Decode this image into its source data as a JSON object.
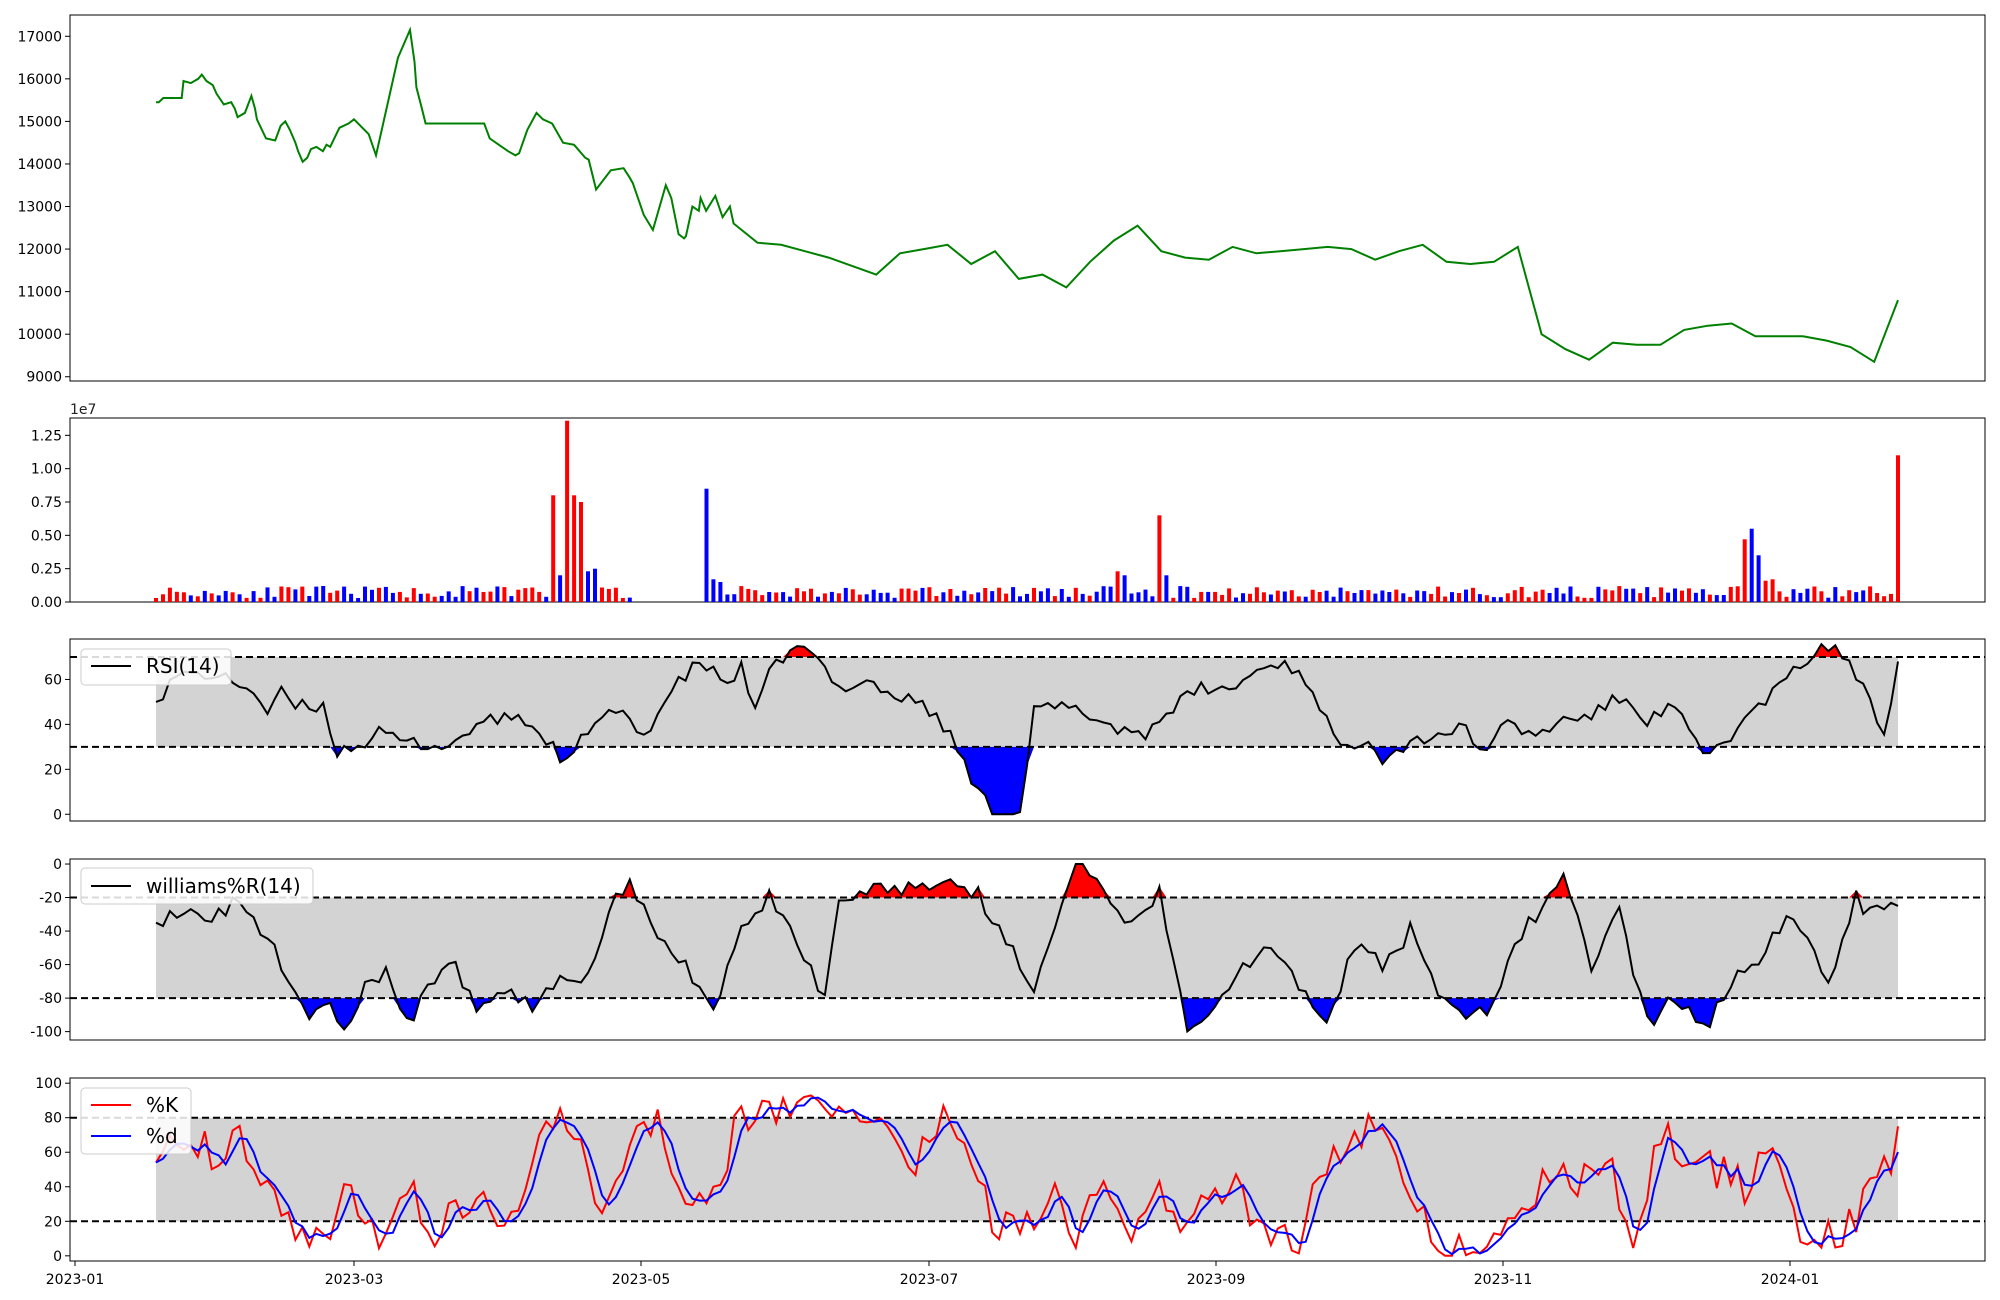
{
  "chart_data": [
    {
      "type": "line",
      "title": "",
      "xlabel": "",
      "ylabel": "",
      "ylim": [
        8900,
        17500
      ],
      "yticks": [
        9000,
        10000,
        11000,
        12000,
        13000,
        14000,
        15000,
        16000,
        17000
      ],
      "color": "#008000",
      "x": [
        0,
        3,
        8,
        16,
        28,
        30,
        38,
        46,
        50,
        55,
        62,
        66,
        74,
        82,
        86,
        89,
        97,
        104,
        108,
        110,
        120,
        130,
        136,
        141,
        146,
        152,
        155,
        160,
        165,
        169,
        175,
        182,
        186,
        190,
        200,
        210,
        216,
        232,
        240,
        264,
        277,
        282,
        284,
        290,
        294,
        300,
        308,
        320,
        340,
        358,
        364,
        374,
        384,
        392,
        396,
        405,
        415,
        422,
        432,
        444,
        456,
        468,
        472,
        480,
        496,
        510,
        516,
        520,
        532,
        542,
        556,
        562,
        570,
        576,
        578,
        585,
        592,
        594,
        600,
        610,
        618,
        626,
        630
      ],
      "values": [
        15450,
        15450,
        15550,
        15550,
        15550,
        15950,
        15900,
        16000,
        16100,
        15950,
        15850,
        15650,
        15400,
        15450,
        15300,
        15100,
        15200,
        15600,
        15300,
        15050,
        14600,
        14550,
        14900,
        15000,
        14800,
        14500,
        14300,
        14050,
        14150,
        14350,
        14400,
        14300,
        14450,
        14400,
        14850,
        14950,
        15050,
        14700,
        14200,
        16500,
        17150,
        16400,
        15800,
        15300,
        14950,
        14950,
        14950,
        14950,
        14950,
        14950,
        14600,
        14450,
        14300,
        14200,
        14250,
        14800,
        15200,
        15050,
        14950,
        14500,
        14450,
        14150,
        14100,
        13400,
        13850,
        13900,
        13700,
        13550,
        12800,
        12450,
        13500,
        13200,
        12350,
        12250,
        12300,
        13000,
        12900,
        13200,
        12900,
        13250,
        12750,
        13000,
        12600
      ],
      "x2": [
        630,
        640,
        650,
        660,
        680,
        700,
        720,
        740,
        760,
        780,
        800,
        820,
        840,
        860,
        880,
        900,
        920,
        940,
        960,
        980,
        1000,
        1020,
        1040,
        1060,
        1080,
        1100,
        1120,
        1140,
        1160,
        1180,
        1200,
        1220,
        1240,
        1260,
        1280,
        1300,
        1320,
        1340,
        1360,
        1380,
        1400,
        1420,
        1440,
        1460,
        1480,
        1500,
        1520,
        1540,
        1560,
        1580,
        1600,
        1620,
        1640,
        1660,
        1680,
        1700,
        1720,
        1740,
        1760,
        1780,
        1800,
        1820,
        1840,
        1860,
        1880,
        1900
      ],
      "note": ""
    },
    {
      "type": "bar",
      "title": "",
      "xlabel": "",
      "ylabel": "",
      "scale_label": "1e7",
      "ylim": [
        0,
        1.38
      ],
      "yticks": [
        "0.00",
        "0.25",
        "0.50",
        "0.75",
        "1.00",
        "1.25"
      ],
      "up_color": "#ff0000",
      "down_color": "#0000ff"
    },
    {
      "type": "area",
      "title": "",
      "legend": "RSI(14)",
      "ylim": [
        -3,
        78
      ],
      "yticks": [
        0,
        20,
        40,
        60
      ],
      "upper_threshold": 70,
      "lower_threshold": 30
    },
    {
      "type": "area",
      "title": "",
      "legend": "williams%R(14)",
      "ylim": [
        -105,
        3
      ],
      "yticks": [
        0,
        -20,
        -40,
        -60,
        -80,
        -100
      ],
      "upper_threshold": -20,
      "lower_threshold": -80
    },
    {
      "type": "line",
      "title": "",
      "legend_k": "%K",
      "legend_d": "%d",
      "ylim": [
        -3,
        103
      ],
      "yticks": [
        0,
        20,
        40,
        60,
        80,
        100
      ],
      "upper_threshold": 80,
      "lower_threshold": 20,
      "k_color": "#ff0000",
      "d_color": "#0000ff",
      "xticks": [
        "2023-01",
        "2023-03",
        "2023-05",
        "2023-07",
        "2023-09",
        "2023-11",
        "2024-01"
      ]
    }
  ]
}
